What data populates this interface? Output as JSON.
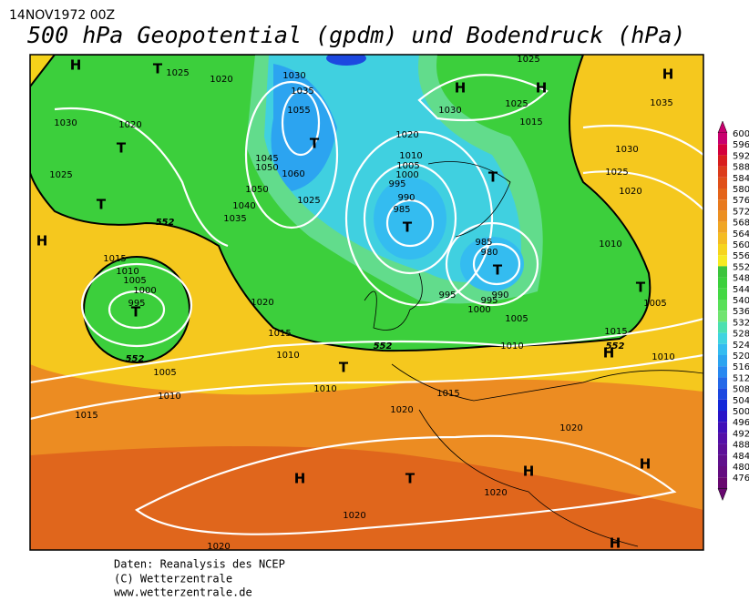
{
  "header": {
    "date": "14NOV1972 00Z",
    "title": "500 hPa Geopotential (gpdm) und Bodendruck (hPa)"
  },
  "legend": {
    "levels": [
      600,
      596,
      592,
      588,
      584,
      580,
      576,
      572,
      568,
      564,
      560,
      556,
      552,
      548,
      544,
      540,
      536,
      532,
      528,
      524,
      520,
      516,
      512,
      508,
      504,
      500,
      496,
      492,
      488,
      484,
      480,
      476
    ],
    "colors": [
      "#c8006e",
      "#d4003c",
      "#d81e1e",
      "#dc3c1c",
      "#e0501a",
      "#e4641a",
      "#e87a1e",
      "#ec9022",
      "#f0a624",
      "#f4bc22",
      "#f6d41c",
      "#f6ea22",
      "#3cc43c",
      "#3cd03c",
      "#44d844",
      "#58e058",
      "#70e470",
      "#4ce0b0",
      "#40d4e0",
      "#34bcf0",
      "#2ca4f0",
      "#2888f0",
      "#2468e8",
      "#1c48e0",
      "#1428d8",
      "#2814c8",
      "#4010b8",
      "#5410a8",
      "#5c1098",
      "#60108c",
      "#640c80",
      "#680870"
    ]
  },
  "map": {
    "isobar_labels": [
      1025,
      1020,
      1030,
      1020,
      1025,
      1015,
      1010,
      1005,
      1000,
      995,
      1020,
      1015,
      1010,
      1005,
      1010,
      1015,
      1010,
      1015,
      1020,
      1020,
      1020,
      1020,
      1020,
      1030,
      1035,
      1055,
      1045,
      1050,
      1060,
      1050,
      1040,
      1035,
      1025,
      1030,
      1025,
      1025,
      1015,
      1020,
      1010,
      1005,
      1000,
      995,
      990,
      985,
      985,
      980,
      995,
      995,
      990,
      1000,
      1005,
      1010,
      1005,
      1015,
      1010,
      1010,
      1030,
      1025,
      1020,
      1035
    ],
    "contour_labels": [
      552,
      552,
      552,
      552
    ],
    "pressure_systems": [
      "H",
      "T",
      "T",
      "T",
      "H",
      "T",
      "T",
      "T",
      "T",
      "H",
      "H",
      "H",
      "T",
      "T",
      "T",
      "H",
      "H",
      "T",
      "H",
      "H",
      "H"
    ]
  },
  "footer": {
    "lines": [
      "Daten: Reanalysis des NCEP",
      "(C) Wetterzentrale",
      "www.wetterzentrale.de"
    ]
  }
}
